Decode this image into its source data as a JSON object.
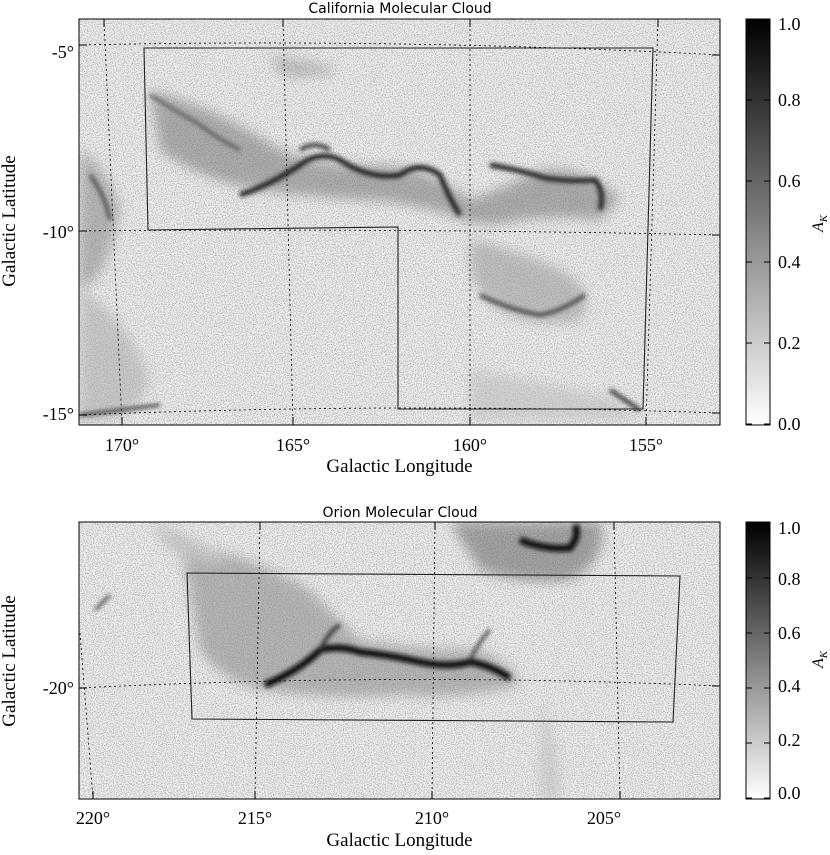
{
  "chart_data": [
    {
      "type": "heatmap",
      "title": "California Molecular Cloud",
      "xlabel": "Galactic Longitude",
      "ylabel": "Galactic Latitude",
      "x_ticks": [
        "170°",
        "165°",
        "160°",
        "155°"
      ],
      "x_tick_values": [
        170,
        165,
        160,
        155
      ],
      "y_ticks": [
        "-5°",
        "-10°",
        "-15°"
      ],
      "y_tick_values": [
        -5,
        -10,
        -15
      ],
      "xlim": [
        171,
        153
      ],
      "ylim": [
        -15.2,
        -4.0
      ],
      "colorbar": {
        "label": "A_K",
        "ticks": [
          "0.0",
          "0.2",
          "0.4",
          "0.6",
          "0.8",
          "1.0"
        ],
        "range": [
          0.0,
          1.0
        ],
        "colormap": "white-to-black"
      },
      "grid": true,
      "outline_polygon_lonlat": [
        [
          169.3,
          -5.0
        ],
        [
          155.3,
          -5.0
        ],
        [
          155.3,
          -14.9
        ],
        [
          162.1,
          -14.9
        ],
        [
          162.1,
          -9.9
        ],
        [
          169.2,
          -9.9
        ]
      ]
    },
    {
      "type": "heatmap",
      "title": "Orion Molecular Cloud",
      "xlabel": "Galactic Longitude",
      "ylabel": "Galactic Latitude",
      "x_ticks": [
        "220°",
        "215°",
        "210°",
        "205°"
      ],
      "x_tick_values": [
        220,
        215,
        210,
        205
      ],
      "y_ticks": [
        "-20°"
      ],
      "y_tick_values": [
        -20
      ],
      "xlim": [
        220.8,
        201.8
      ],
      "ylim": [
        -23.0,
        -12.8
      ],
      "colorbar": {
        "label": "A_K",
        "ticks": [
          "0.0",
          "0.2",
          "0.4",
          "0.6",
          "0.8",
          "1.0"
        ],
        "range": [
          0.0,
          1.0
        ],
        "colormap": "white-to-black"
      },
      "grid": true,
      "outline_polygon_lonlat": [
        [
          217.2,
          -15.2
        ],
        [
          203.2,
          -15.2
        ],
        [
          203.0,
          -20.6
        ],
        [
          217.1,
          -20.6
        ]
      ]
    }
  ],
  "colorbar_label_main": "A",
  "colorbar_label_sub": "K"
}
